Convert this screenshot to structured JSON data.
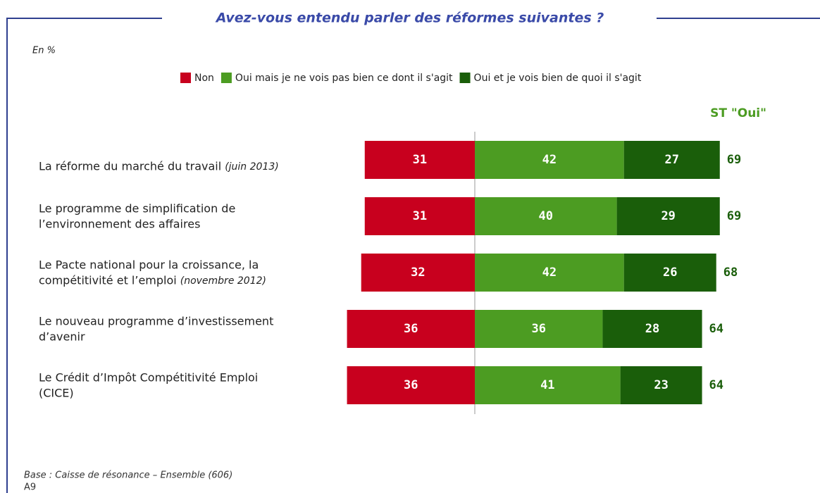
{
  "chart_data": {
    "type": "diverging_bar",
    "title": "Avez-vous entendu parler des réformes suivantes ?",
    "subtitle": "En %",
    "categories": [
      [
        "La réforme du marché du travail"
      ],
      [
        "Le programme  de simplification de",
        "l’environnement des affaires"
      ],
      [
        "Le Pacte national pour la  croissance, la",
        "compétitivité et l’emploi"
      ],
      [
        "Le nouveau programme  d’investissement",
        "d’avenir"
      ],
      [
        "Le Crédit d’Impôt Compétitivité Emploi",
        "(CICE)"
      ]
    ],
    "category_notes": [
      "(juin 2013)",
      null,
      "(novembre 2012)",
      null,
      null
    ],
    "series": [
      {
        "name": "Non",
        "color": "#c8001e",
        "side": "left",
        "values": [
          31,
          31,
          32,
          36,
          36
        ]
      },
      {
        "name": "Oui mais je ne vois pas bien ce dont il s'agit",
        "color": "#4c9c22",
        "side": "right",
        "values": [
          42,
          40,
          42,
          36,
          41
        ]
      },
      {
        "name": "Oui et je vois bien de quoi il s'agit",
        "color": "#1a5e0a",
        "side": "right",
        "values": [
          27,
          29,
          26,
          28,
          23
        ]
      }
    ],
    "totals": {
      "name": "ST \"Oui\"",
      "color": "#4c9c22",
      "values": [
        69,
        69,
        68,
        64,
        64
      ]
    },
    "footnotes": [
      "Base : Caisse de résonance – Ensemble (606)",
      "A9"
    ]
  }
}
